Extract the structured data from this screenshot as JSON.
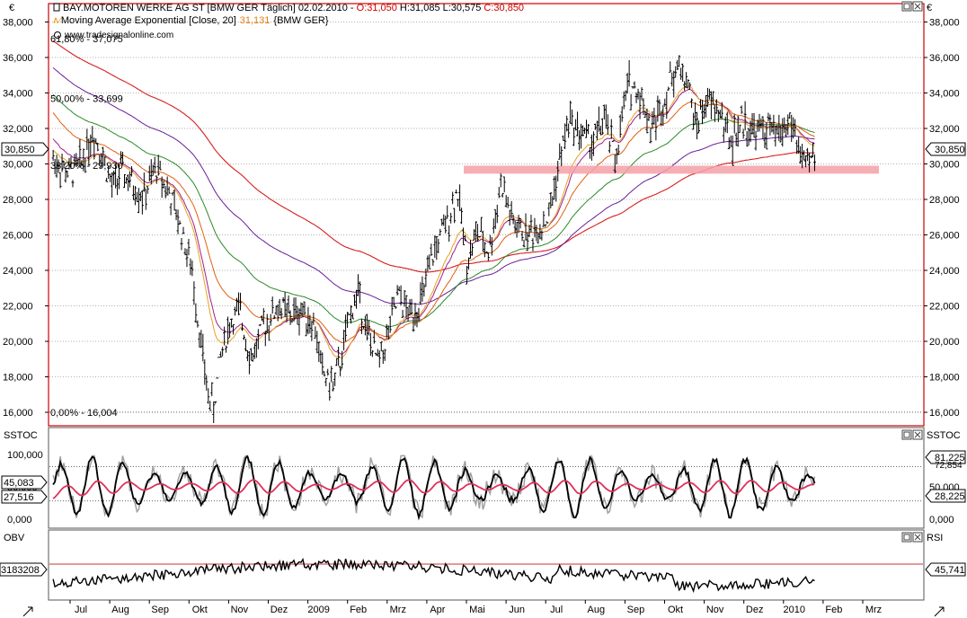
{
  "currency_symbol": "€",
  "website": "www.tradesignalonline.com",
  "colors": {
    "frame_red": "#cc0000",
    "support_band": "#f4a0a8",
    "ema200": "#d81e1e",
    "ema150": "#6a1e9a",
    "ema100": "#2a8a2a",
    "ema50": "#e06010",
    "ema20": "#e8a020",
    "ema_short": "#a0208a",
    "sstoc_k": "#000000",
    "sstoc_gray": "#a0a0a0",
    "sstoc_signal": "#e0305a",
    "obv_line": "#000000",
    "rsi_ref_line": "#cc3030"
  },
  "main_panel": {
    "title_line": "BAY.MOTOREN WERKE AG ST [BMW GER  Täglich] 02.02.2010 - ",
    "ohlc": {
      "open": "O:31,050",
      "high": "H:31,085",
      "low": "L:30,575",
      "close": "C:30,850"
    },
    "indicator_label": "Moving Average Exponential [Close, 20]",
    "indicator_value": "31,131",
    "indicator_suffix": "{BMW GER}",
    "fib_top": "61,80% - 37,075",
    "fib_50": "50,00% - 33,699",
    "fib_38": "38,20% - 29,930",
    "fib_0": "0,00% - 16,004",
    "last_price_label": "30,850",
    "y_ticks": [
      "38,000",
      "36,000",
      "34,000",
      "32,000",
      "30,000",
      "28,000",
      "26,000",
      "24,000",
      "22,000",
      "20,000",
      "18,000",
      "16,000"
    ]
  },
  "sstoc_panel": {
    "label": "SSTOC",
    "right_label": "SSTOC",
    "left_values": [
      "45,083",
      "27,516"
    ],
    "right_values": [
      "81,225",
      "72,854",
      "28,225"
    ],
    "y_ticks": [
      "100,000",
      "50,000",
      "0,000"
    ]
  },
  "obv_panel": {
    "label": "OBV",
    "right_label": "RSI",
    "left_value": "3183208",
    "right_value": "45,741"
  },
  "x_axis_labels": [
    "Jul",
    "Aug",
    "Sep",
    "Okt",
    "Nov",
    "Dez",
    "2009",
    "Feb",
    "Mrz",
    "Apr",
    "Mai",
    "Jun",
    "Jul",
    "Aug",
    "Sep",
    "Okt",
    "Nov",
    "Dez",
    "2010",
    "Feb",
    "Mrz"
  ],
  "chart_data": {
    "type": "line",
    "title": "BAY.MOTOREN WERKE AG ST [BMW GER  Täglich] 02.02.2010",
    "x": [
      "Jul",
      "Aug",
      "Sep",
      "Okt",
      "Nov",
      "Dez",
      "2009",
      "Feb",
      "Mrz",
      "Apr",
      "Mai",
      "Jun",
      "Jul",
      "Aug",
      "Sep",
      "Okt",
      "Nov",
      "Dez",
      "2010"
    ],
    "ylim": [
      15.5,
      38.5
    ],
    "series": [
      {
        "name": "",
        "values": [
          29.5,
          28.6,
          28.2,
          21.0,
          20.5,
          21.3,
          21.6,
          20.8,
          20.0,
          25.8,
          26.3,
          26.9,
          27.0,
          31.2,
          33.6,
          33.9,
          32.6,
          31.9,
          30.4
        ]
      },
      {
        "name": "Moving Average Exponential [Close, 20]",
        "values": [
          30.2,
          28.9,
          28.0,
          23.1,
          20.9,
          21.2,
          21.3,
          20.5,
          20.5,
          23.9,
          26.1,
          26.5,
          26.6,
          30.3,
          32.8,
          33.7,
          32.8,
          32.0,
          31.1
        ]
      }
    ],
    "support_zone": [
      29.45,
      29.9
    ],
    "grid": true
  }
}
